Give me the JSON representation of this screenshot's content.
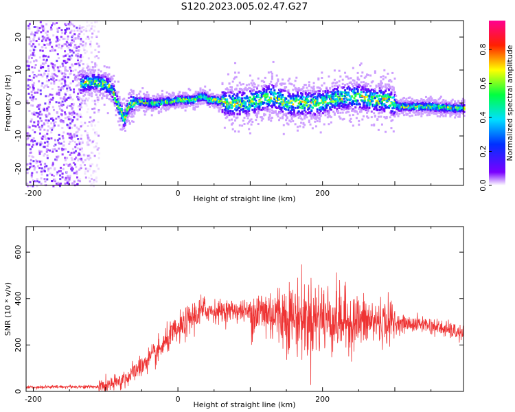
{
  "title": "S120.2023.005.02.47.G27",
  "chart_data": [
    {
      "type": "heatmap",
      "xlabel": "Height of straight line (km)",
      "ylabel": "Frequency (Hz)",
      "xlim": [
        -210,
        395
      ],
      "ylim": [
        -25,
        25
      ],
      "xticks": [
        -200,
        0,
        200
      ],
      "yticks": [
        -20,
        -10,
        0,
        10,
        20
      ],
      "colorbar": {
        "label": "Normalized spectral amplitude",
        "range": [
          0,
          0.97
        ],
        "ticks": [
          "0.0",
          "0.2",
          "0.4",
          "0.6",
          "0.8"
        ]
      },
      "center_frequency_track": {
        "x": [
          -135,
          -120,
          -105,
          -95,
          -90,
          -85,
          -80,
          -75,
          -70,
          -65,
          -60,
          -50,
          -40,
          -30,
          -20,
          -10,
          0,
          10,
          20,
          30,
          37,
          40,
          50,
          70,
          90,
          110,
          130,
          150,
          170,
          190,
          210,
          230,
          250,
          270,
          290,
          305,
          320,
          350,
          380,
          395
        ],
        "y": [
          6,
          6.5,
          6,
          5,
          3,
          0,
          -2.5,
          -5,
          -1,
          0,
          0.5,
          0.5,
          0,
          0,
          0.5,
          0.5,
          1,
          1,
          1,
          2,
          2,
          1,
          1,
          0,
          0,
          1,
          2,
          0,
          0,
          0,
          1,
          2,
          2,
          1,
          1,
          -1,
          -1,
          -1,
          -1.5,
          -1.5
        ]
      }
    },
    {
      "type": "line",
      "xlabel": "Height of straight line (km)",
      "ylabel": "SNR (10 * v/v)",
      "xlim": [
        -210,
        395
      ],
      "ylim": [
        0,
        710
      ],
      "xticks": [
        -200,
        0,
        200
      ],
      "yticks": [
        0,
        200,
        400,
        600
      ],
      "color": "#ee3333",
      "snr_envelope": {
        "x": [
          -210,
          -150,
          -110,
          -90,
          -70,
          -50,
          -40,
          -30,
          -20,
          -10,
          0,
          10,
          20,
          30,
          40,
          60,
          80,
          100,
          120,
          140,
          160,
          180,
          200,
          220,
          240,
          260,
          280,
          300,
          320,
          340,
          360,
          380,
          395
        ],
        "y": [
          18,
          20,
          20,
          30,
          60,
          110,
          140,
          160,
          200,
          240,
          260,
          290,
          320,
          340,
          350,
          345,
          350,
          340,
          340,
          330,
          320,
          310,
          320,
          310,
          300,
          300,
          300,
          295,
          290,
          290,
          275,
          260,
          245
        ]
      }
    }
  ]
}
